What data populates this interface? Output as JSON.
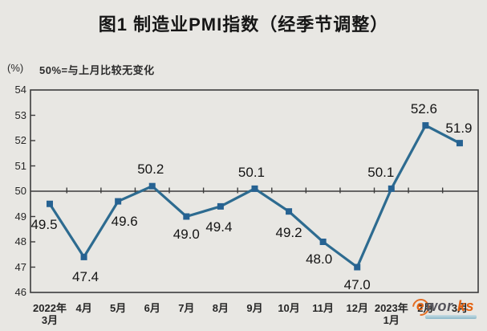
{
  "title": "图1 制造业PMI指数（经季节调整）",
  "y_unit": "(%)",
  "axis_note": "50%=与上月比较无变化",
  "watermark": {
    "part1": "e",
    "part2": "wor",
    "part3": "ks"
  },
  "chart_data": {
    "type": "line",
    "title": "图1 制造业PMI指数（经季节调整）",
    "subtitle_note": "50%=与上月比较无变化",
    "ylabel": "(%)",
    "xlabel": "",
    "legend_position": "none",
    "grid": "off",
    "reference_line": 50,
    "ylim": [
      46,
      54
    ],
    "yticks": [
      54,
      53,
      52,
      51,
      50,
      49,
      48,
      47,
      46
    ],
    "categories": [
      [
        "2022年",
        "3月"
      ],
      [
        "4月"
      ],
      [
        "5月"
      ],
      [
        "6月"
      ],
      [
        "7月"
      ],
      [
        "8月"
      ],
      [
        "9月"
      ],
      [
        "10月"
      ],
      [
        "11月"
      ],
      [
        "12月"
      ],
      [
        "2023年",
        "1月"
      ],
      [
        "2月"
      ],
      [
        "3月"
      ]
    ],
    "series": [
      {
        "name": "制造业PMI指数",
        "values": [
          49.5,
          47.4,
          49.6,
          50.2,
          49.0,
          49.4,
          50.1,
          49.2,
          48.0,
          47.0,
          50.1,
          52.6,
          51.9
        ],
        "value_labels": [
          "49.5",
          "47.4",
          "49.6",
          "50.2",
          "49.0",
          "49.4",
          "50.1",
          "49.2",
          "48.0",
          "47.0",
          "50.1",
          "52.6",
          "51.9"
        ]
      }
    ],
    "colors": {
      "line": "#2d6b90",
      "marker": "#266292",
      "axis": "#3c3c3c",
      "label_text": "#141414",
      "background": "#e8e7e3"
    }
  }
}
